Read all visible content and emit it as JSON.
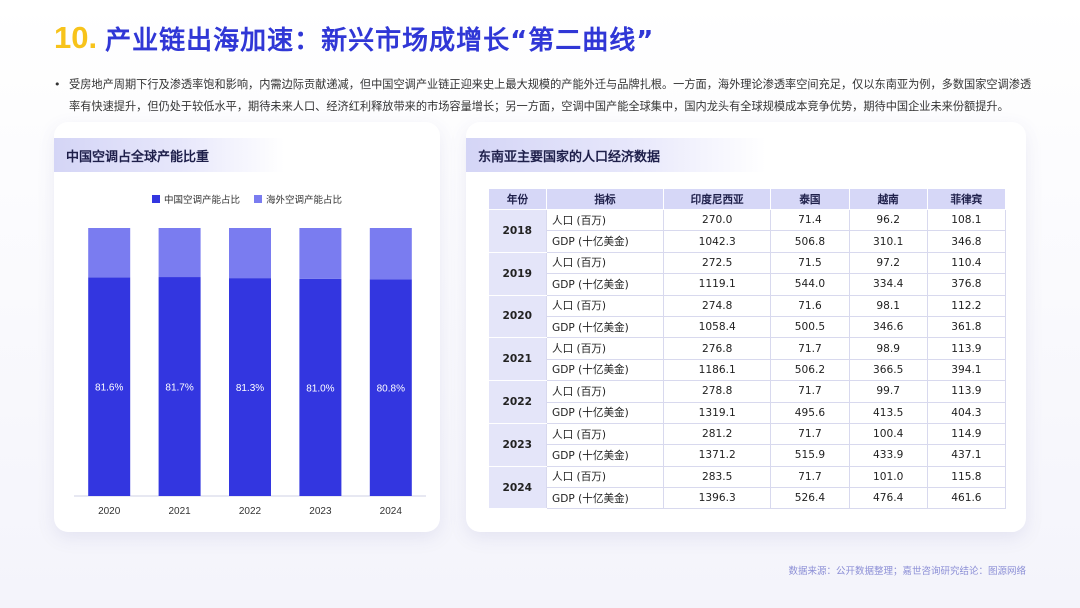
{
  "header": {
    "number": "10.",
    "title": "产业链出海加速：新兴市场成增长“第二曲线”"
  },
  "intro": {
    "bullet": "•",
    "text": "受房地产周期下行及渗透率饱和影响，内需边际贡献递减，但中国空调产业链正迎来史上最大规模的产能外迁与品牌扎根。一方面，海外理论渗透率空间充足，仅以东南亚为例，多数国家空调渗透率有快速提升，但仍处于较低水平，期待未来人口、经济红利释放带来的市场容量增长；另一方面，空调中国产能全球集中，国内龙头有全球规模成本竞争优势，期待中国企业未来份额提升。"
  },
  "left_card": {
    "title": "中国空调占全球产能比重"
  },
  "right_card": {
    "title": "东南亚主要国家的人口经济数据"
  },
  "chart_data": {
    "type": "bar",
    "stacked": true,
    "categories": [
      "2020",
      "2021",
      "2022",
      "2023",
      "2024"
    ],
    "series": [
      {
        "name": "中国空调产能占比",
        "values": [
          81.6,
          81.7,
          81.3,
          81.0,
          80.8
        ],
        "color": "#3336e0",
        "labels": [
          "81.6%",
          "81.7%",
          "81.3%",
          "81.0%",
          "80.8%"
        ]
      },
      {
        "name": "海外空调产能占比",
        "values": [
          18.4,
          18.3,
          18.7,
          19.0,
          19.2
        ],
        "color": "#7a7cf0"
      }
    ],
    "ylim": [
      0,
      100
    ],
    "grid": false,
    "legend": "top-center"
  },
  "table": {
    "headers": [
      "年份",
      "指标",
      "印度尼西亚",
      "泰国",
      "越南",
      "菲律宾"
    ],
    "rows": [
      {
        "year": "2018",
        "items": [
          {
            "ind": "人口 (百万)",
            "vals": [
              "270.0",
              "71.4",
              "96.2",
              "108.1"
            ]
          },
          {
            "ind": "GDP (十亿美金)",
            "vals": [
              "1042.3",
              "506.8",
              "310.1",
              "346.8"
            ]
          }
        ]
      },
      {
        "year": "2019",
        "items": [
          {
            "ind": "人口 (百万)",
            "vals": [
              "272.5",
              "71.5",
              "97.2",
              "110.4"
            ]
          },
          {
            "ind": "GDP (十亿美金)",
            "vals": [
              "1119.1",
              "544.0",
              "334.4",
              "376.8"
            ]
          }
        ]
      },
      {
        "year": "2020",
        "items": [
          {
            "ind": "人口 (百万)",
            "vals": [
              "274.8",
              "71.6",
              "98.1",
              "112.2"
            ]
          },
          {
            "ind": "GDP (十亿美金)",
            "vals": [
              "1058.4",
              "500.5",
              "346.6",
              "361.8"
            ]
          }
        ]
      },
      {
        "year": "2021",
        "items": [
          {
            "ind": "人口 (百万)",
            "vals": [
              "276.8",
              "71.7",
              "98.9",
              "113.9"
            ]
          },
          {
            "ind": "GDP (十亿美金)",
            "vals": [
              "1186.1",
              "506.2",
              "366.5",
              "394.1"
            ]
          }
        ]
      },
      {
        "year": "2022",
        "items": [
          {
            "ind": "人口 (百万)",
            "vals": [
              "278.8",
              "71.7",
              "99.7",
              "113.9"
            ]
          },
          {
            "ind": "GDP (十亿美金)",
            "vals": [
              "1319.1",
              "495.6",
              "413.5",
              "404.3"
            ]
          }
        ]
      },
      {
        "year": "2023",
        "items": [
          {
            "ind": "人口 (百万)",
            "vals": [
              "281.2",
              "71.7",
              "100.4",
              "114.9"
            ]
          },
          {
            "ind": "GDP (十亿美金)",
            "vals": [
              "1371.2",
              "515.9",
              "433.9",
              "437.1"
            ]
          }
        ]
      },
      {
        "year": "2024",
        "items": [
          {
            "ind": "人口 (百万)",
            "vals": [
              "283.5",
              "71.7",
              "101.0",
              "115.8"
            ]
          },
          {
            "ind": "GDP (十亿美金)",
            "vals": [
              "1396.3",
              "526.4",
              "476.4",
              "461.6"
            ]
          }
        ]
      }
    ]
  },
  "footer": {
    "source": "数据来源：公开数据整理；嘉世咨询研究结论：图源网络"
  }
}
